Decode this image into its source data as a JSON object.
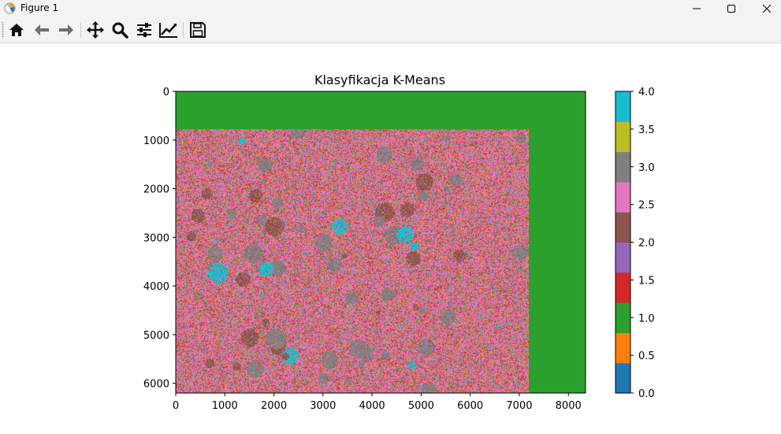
{
  "window": {
    "title": "Figure 1"
  },
  "toolbar": {
    "buttons": [
      "home",
      "back",
      "forward",
      "pan",
      "zoom",
      "configure-subplots",
      "edit-axis",
      "save"
    ]
  },
  "chart_data": {
    "type": "heatmap",
    "title": "Klasyfikacja K-Means",
    "xlabel": "",
    "ylabel": "",
    "xlim": [
      0,
      8350
    ],
    "ylim": [
      6200,
      0
    ],
    "x_ticks": [
      0,
      1000,
      2000,
      3000,
      4000,
      5000,
      6000,
      7000,
      8000
    ],
    "y_ticks": [
      0,
      1000,
      2000,
      3000,
      4000,
      5000,
      6000
    ],
    "x_tick_labels": [
      "0",
      "1000",
      "2000",
      "3000",
      "4000",
      "5000",
      "6000",
      "7000",
      "8000"
    ],
    "y_tick_labels": [
      "0",
      "1000",
      "2000",
      "3000",
      "4000",
      "5000",
      "6000"
    ],
    "background_class": 1,
    "classified_region": {
      "x": [
        0,
        7200
      ],
      "y": [
        780,
        6200
      ]
    },
    "dominant_classes": [
      2.5,
      1.5,
      0.5,
      3.0
    ],
    "colorbar": {
      "min": 0.0,
      "max": 4.0,
      "tick_labels": [
        "0.0",
        "0.5",
        "1.0",
        "1.5",
        "2.0",
        "2.5",
        "3.0",
        "3.5",
        "4.0"
      ],
      "colors": [
        "#1f77b4",
        "#ff7f0e",
        "#2ca02c",
        "#d62728",
        "#9467bd",
        "#8c564b",
        "#e377c2",
        "#7f7f7f",
        "#bcbd22",
        "#17becf"
      ]
    },
    "grid": false
  }
}
